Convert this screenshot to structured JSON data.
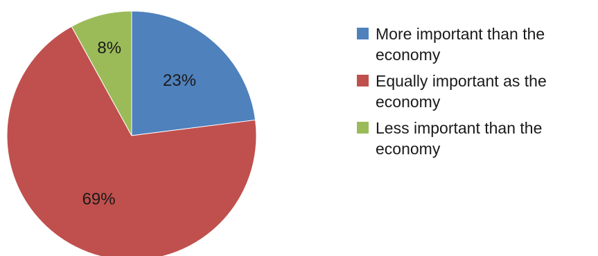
{
  "chart_data": {
    "type": "pie",
    "title": "",
    "start_angle_deg": 0,
    "direction": "clockwise",
    "legend_position": "right",
    "slices": [
      {
        "name": "More important than the economy",
        "value": 23,
        "label": "23%",
        "color": "#4F81BD"
      },
      {
        "name": "Equally important as the economy",
        "value": 69,
        "label": "69%",
        "color": "#C0504D"
      },
      {
        "name": "Less important than the economy",
        "value": 8,
        "label": "8%",
        "color": "#9BBB59"
      }
    ]
  }
}
